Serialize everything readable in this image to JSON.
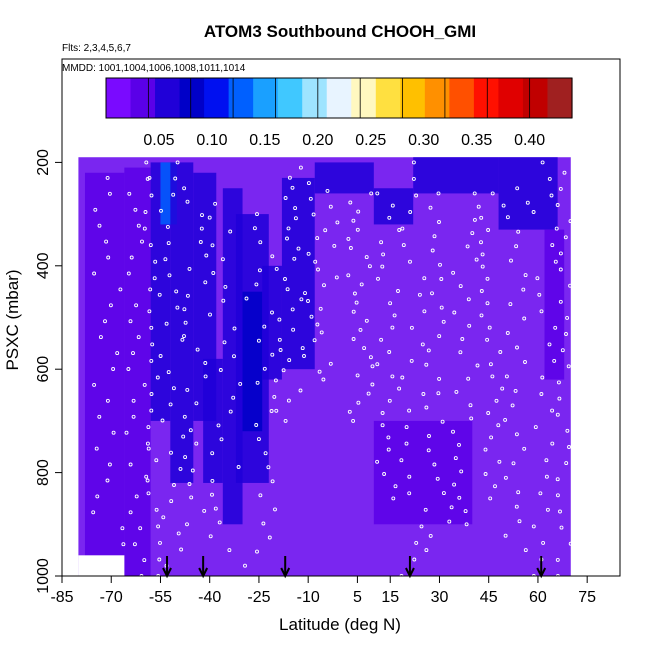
{
  "title": "ATOM3 Southbound CHOOH_GMI",
  "flights_note": "Flts: 2,3,4,5,6,7",
  "dates_note": "MMDD: 1001,1004,1006,1008,1011,1014",
  "colors": {
    "colorbar": [
      "#7a0aff",
      "#5a00e8",
      "#2000d8",
      "#0000c8",
      "#0010f0",
      "#0060ff",
      "#1aa0ff",
      "#40c8ff",
      "#9ee4ff",
      "#e8f4ff",
      "#fff8c0",
      "#ffe040",
      "#ffc000",
      "#ff9000",
      "#ff5000",
      "#ff1000",
      "#e00000",
      "#c00000",
      "#a02020"
    ],
    "background_field": "#7a26f0",
    "observation_points": "#ffffff",
    "arrows": "#000000"
  },
  "chart_data": {
    "type": "heatmap",
    "title": "ATOM3 Southbound CHOOH_GMI",
    "xlabel": "Latitude (deg N)",
    "ylabel": "PSXC (mbar)",
    "xlim": [
      -85,
      85
    ],
    "ylim": [
      1000,
      0
    ],
    "x_ticks": [
      "-85",
      "-70",
      "-55",
      "-40",
      "-25",
      "-10",
      "5",
      "15",
      "30",
      "45",
      "60",
      "75"
    ],
    "x_tick_values": [
      -85,
      -70,
      -55,
      -40,
      -25,
      -10,
      5,
      15,
      30,
      45,
      60,
      75
    ],
    "y_ticks": [
      "200",
      "400",
      "600",
      "800",
      "1000"
    ],
    "y_tick_values": [
      200,
      400,
      600,
      800,
      1000
    ],
    "colorbar": {
      "ticks": [
        "0.05",
        "0.10",
        "0.15",
        "0.20",
        "0.25",
        "0.30",
        "0.35",
        "0.40"
      ],
      "tick_values": [
        0.05,
        0.1,
        0.15,
        0.2,
        0.25,
        0.3,
        0.35,
        0.4
      ],
      "range": [
        0.0,
        0.44
      ]
    },
    "data_extent": {
      "lat_min": -80,
      "lat_max": 70,
      "pres_top": 190,
      "pres_bottom": 1000
    },
    "field_cells": [
      {
        "lat": [
          -78,
          -66
        ],
        "pres": [
          220,
          960
        ],
        "value": 0.03
      },
      {
        "lat": [
          -66,
          -58
        ],
        "pres": [
          210,
          1000
        ],
        "value": 0.035
      },
      {
        "lat": [
          -58,
          -52
        ],
        "pres": [
          200,
          700
        ],
        "value": 0.045
      },
      {
        "lat": [
          -55,
          -50
        ],
        "pres": [
          200,
          320
        ],
        "value": 0.12
      },
      {
        "lat": [
          -52,
          -45
        ],
        "pres": [
          200,
          820
        ],
        "value": 0.05
      },
      {
        "lat": [
          -45,
          -38
        ],
        "pres": [
          220,
          700
        ],
        "value": 0.04
      },
      {
        "lat": [
          -42,
          -36
        ],
        "pres": [
          580,
          820
        ],
        "value": 0.055
      },
      {
        "lat": [
          -36,
          -30
        ],
        "pres": [
          250,
          900
        ],
        "value": 0.04
      },
      {
        "lat": [
          -32,
          -22
        ],
        "pres": [
          300,
          820
        ],
        "value": 0.06
      },
      {
        "lat": [
          -30,
          -24
        ],
        "pres": [
          450,
          720
        ],
        "value": 0.075
      },
      {
        "lat": [
          -24,
          -18
        ],
        "pres": [
          400,
          620
        ],
        "value": 0.05
      },
      {
        "lat": [
          -18,
          -8
        ],
        "pres": [
          230,
          600
        ],
        "value": 0.045
      },
      {
        "lat": [
          -8,
          10
        ],
        "pres": [
          200,
          260
        ],
        "value": 0.05
      },
      {
        "lat": [
          10,
          22
        ],
        "pres": [
          250,
          320
        ],
        "value": 0.045
      },
      {
        "lat": [
          22,
          48
        ],
        "pres": [
          190,
          260
        ],
        "value": 0.04
      },
      {
        "lat": [
          48,
          66
        ],
        "pres": [
          190,
          330
        ],
        "value": 0.05
      },
      {
        "lat": [
          62,
          68
        ],
        "pres": [
          330,
          620
        ],
        "value": 0.035
      },
      {
        "lat": [
          10,
          40
        ],
        "pres": [
          700,
          900
        ],
        "value": 0.035
      }
    ],
    "arrows_lat": [
      -53,
      -42,
      -17,
      21,
      61
    ],
    "flight_tracks": [
      {
        "lat_start": -76,
        "lat_end": -66,
        "pres_start": 230,
        "pres_end": 1000
      },
      {
        "lat_start": -66,
        "lat_end": -58,
        "pres_start": 230,
        "pres_end": 1000
      },
      {
        "lat_start": -60,
        "lat_end": -55,
        "pres_start": 200,
        "pres_end": 1000
      },
      {
        "lat_start": -55,
        "lat_end": -48,
        "pres_start": 200,
        "pres_end": 980
      },
      {
        "lat_start": -48,
        "lat_end": -40,
        "pres_start": 250,
        "pres_end": 900
      },
      {
        "lat_start": -40,
        "lat_end": -30,
        "pres_start": 280,
        "pres_end": 950
      },
      {
        "lat_start": -30,
        "lat_end": -20,
        "pres_start": 300,
        "pres_end": 980
      },
      {
        "lat_start": -20,
        "lat_end": -12,
        "pres_start": 210,
        "pres_end": 700
      },
      {
        "lat_start": -12,
        "lat_end": 0,
        "pres_start": 240,
        "pres_end": 620
      },
      {
        "lat_start": 2,
        "lat_end": 10,
        "pres_start": 260,
        "pres_end": 700
      },
      {
        "lat_start": 10,
        "lat_end": 18,
        "pres_start": 260,
        "pres_end": 850
      },
      {
        "lat_start": 18,
        "lat_end": 26,
        "pres_start": 200,
        "pres_end": 1000
      },
      {
        "lat_start": 26,
        "lat_end": 34,
        "pres_start": 260,
        "pres_end": 950
      },
      {
        "lat_start": 34,
        "lat_end": 42,
        "pres_start": 260,
        "pres_end": 900
      },
      {
        "lat_start": 42,
        "lat_end": 50,
        "pres_start": 260,
        "pres_end": 850
      },
      {
        "lat_start": 50,
        "lat_end": 58,
        "pres_start": 250,
        "pres_end": 950
      },
      {
        "lat_start": 58,
        "lat_end": 66,
        "pres_start": 200,
        "pres_end": 1000
      },
      {
        "lat_start": 66,
        "lat_end": 70,
        "pres_start": 220,
        "pres_end": 1000
      }
    ],
    "legend": "none",
    "grid": false
  }
}
